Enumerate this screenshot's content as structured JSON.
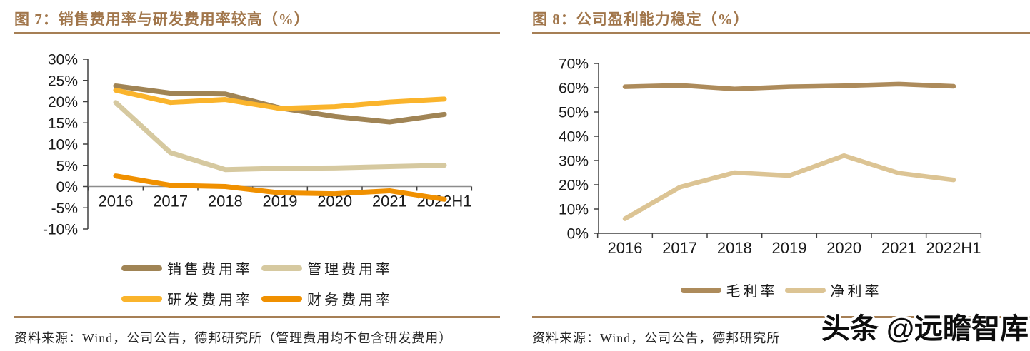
{
  "watermark": {
    "text": "头条 @远瞻智库"
  },
  "chart_data": [
    {
      "id": "figure-7",
      "type": "line",
      "title": "图 7：销售费用率与研发费用率较高（%）",
      "source": "资料来源：Wind，公司公告，德邦研究所（管理费用均不包含研发费用）",
      "categories": [
        "2016",
        "2017",
        "2018",
        "2019",
        "2020",
        "2021",
        "2022H1"
      ],
      "series": [
        {
          "name": "销售费用率",
          "color": "#A08455",
          "values": [
            23.7,
            22.0,
            21.8,
            18.5,
            16.5,
            15.2,
            17.0
          ]
        },
        {
          "name": "管理费用率",
          "color": "#D6C9A0",
          "values": [
            19.8,
            8.0,
            4.0,
            4.3,
            4.4,
            4.7,
            5.0
          ]
        },
        {
          "name": "研发费用率",
          "color": "#FAB42C",
          "values": [
            22.7,
            19.8,
            20.5,
            18.4,
            18.8,
            19.9,
            20.6
          ]
        },
        {
          "name": "财务费用率",
          "color": "#F09000",
          "values": [
            2.5,
            0.3,
            0.0,
            -1.5,
            -1.7,
            -1.0,
            -3.0
          ]
        }
      ],
      "ylim": [
        -10,
        30
      ],
      "ytick_step": 5,
      "ytick_suffix": "%",
      "x_axis_at": 0,
      "grid": false,
      "legend_position": "bottom",
      "legend_layout": "two-rows"
    },
    {
      "id": "figure-8",
      "type": "line",
      "title": "图 8：公司盈利能力稳定（%）",
      "source": "资料来源：Wind，公司公告，德邦研究所",
      "categories": [
        "2016",
        "2017",
        "2018",
        "2019",
        "2020",
        "2021",
        "2022H1"
      ],
      "series": [
        {
          "name": "毛利率",
          "color": "#AD8B5B",
          "values": [
            60.4,
            61.0,
            59.5,
            60.4,
            60.8,
            61.5,
            60.6
          ]
        },
        {
          "name": "净利率",
          "color": "#DCC494",
          "values": [
            6.0,
            19.0,
            25.0,
            23.8,
            32.0,
            24.8,
            22.0
          ]
        }
      ],
      "ylim": [
        0,
        70
      ],
      "ytick_step": 10,
      "ytick_suffix": "%",
      "grid": false,
      "legend_position": "bottom",
      "legend_layout": "one-row"
    }
  ],
  "colors": {
    "accent_title": "#A1764B",
    "rule": "#A67F55",
    "axis": "#404040",
    "zero_line": "#8C8C8C",
    "tick_text": "#1a1a1a"
  }
}
